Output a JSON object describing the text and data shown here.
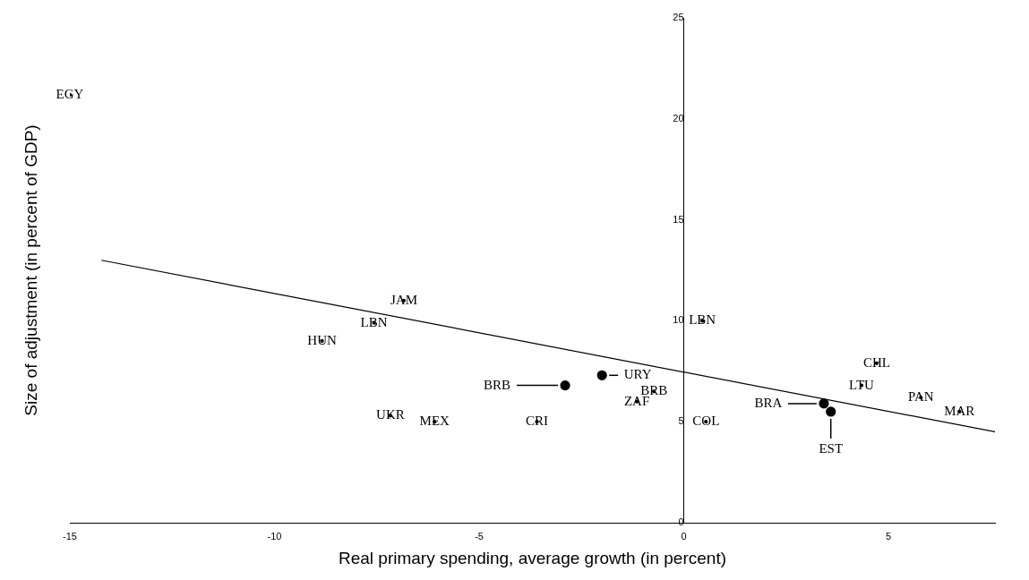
{
  "chart_data": {
    "type": "scatter",
    "xlabel": "Real primary spending, average growth (in percent)",
    "ylabel": "Size of adjustment (in percent of GDP)",
    "xlim": [
      -15,
      7.6
    ],
    "ylim": [
      0,
      25
    ],
    "xticks": [
      -15,
      -10,
      -5,
      0,
      5
    ],
    "yticks": [
      0,
      5,
      10,
      15,
      20,
      25
    ],
    "grid": false,
    "legend": false,
    "series": [
      {
        "color": "#000000",
        "x": [
          -15.0,
          -6.84,
          -7.57,
          -8.84,
          -7.17,
          -6.09,
          -3.59,
          -0.73,
          -1.15,
          0.45,
          0.54,
          4.71,
          4.34,
          5.79,
          6.73
        ],
        "values": [
          21.2,
          11.0,
          9.9,
          9.0,
          5.3,
          5.0,
          5.0,
          6.5,
          6.0,
          10.0,
          5.0,
          7.9,
          6.8,
          6.2,
          5.5
        ],
        "value_labels": [
          "EGY",
          "JAM",
          "LBN",
          "HUN",
          "UKR",
          "MEX",
          "CRI",
          "BRB",
          "ZAF",
          "LBN",
          "COL",
          "CHL",
          "LTU",
          "PAN",
          "MAR"
        ]
      },
      {
        "marker": "circle",
        "color": "#000000",
        "x": [
          -2.9,
          -2.0,
          3.42,
          3.59
        ],
        "values": [
          6.8,
          7.3,
          5.9,
          5.5
        ],
        "value_labels": [
          "BRB",
          "URY",
          "BRA",
          "EST"
        ]
      },
      {
        "type": "line",
        "marker": "none",
        "color": "#000000",
        "x": [
          -14.23,
          7.6
        ],
        "values": [
          13.0,
          4.5
        ]
      }
    ]
  }
}
